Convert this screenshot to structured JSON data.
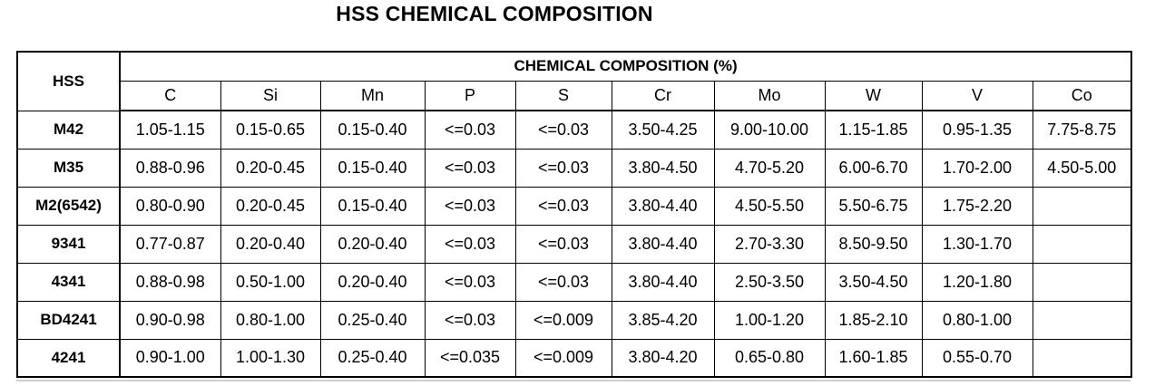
{
  "title": "HSS CHEMICAL COMPOSITION",
  "table": {
    "row_header": "HSS",
    "group_header": "CHEMICAL COMPOSITION (%)",
    "elements": [
      "C",
      "Si",
      "Mn",
      "P",
      "S",
      "Cr",
      "Mo",
      "W",
      "V",
      "Co"
    ],
    "rows": [
      {
        "grade": "M42",
        "values": [
          "1.05-1.15",
          "0.15-0.65",
          "0.15-0.40",
          "<=0.03",
          "<=0.03",
          "3.50-4.25",
          "9.00-10.00",
          "1.15-1.85",
          "0.95-1.35",
          "7.75-8.75"
        ]
      },
      {
        "grade": "M35",
        "values": [
          "0.88-0.96",
          "0.20-0.45",
          "0.15-0.40",
          "<=0.03",
          "<=0.03",
          "3.80-4.50",
          "4.70-5.20",
          "6.00-6.70",
          "1.70-2.00",
          "4.50-5.00"
        ]
      },
      {
        "grade": "M2(6542)",
        "values": [
          "0.80-0.90",
          "0.20-0.45",
          "0.15-0.40",
          "<=0.03",
          "<=0.03",
          "3.80-4.40",
          "4.50-5.50",
          "5.50-6.75",
          "1.75-2.20",
          ""
        ]
      },
      {
        "grade": "9341",
        "values": [
          "0.77-0.87",
          "0.20-0.40",
          "0.20-0.40",
          "<=0.03",
          "<=0.03",
          "3.80-4.40",
          "2.70-3.30",
          "8.50-9.50",
          "1.30-1.70",
          ""
        ]
      },
      {
        "grade": "4341",
        "values": [
          "0.88-0.98",
          "0.50-1.00",
          "0.20-0.40",
          "<=0.03",
          "<=0.03",
          "3.80-4.40",
          "2.50-3.50",
          "3.50-4.50",
          "1.20-1.80",
          ""
        ]
      },
      {
        "grade": "BD4241",
        "values": [
          "0.90-0.98",
          "0.80-1.00",
          "0.25-0.40",
          "<=0.03",
          "<=0.009",
          "3.85-4.20",
          "1.00-1.20",
          "1.85-2.10",
          "0.80-1.00",
          ""
        ]
      },
      {
        "grade": "4241",
        "values": [
          "0.90-1.00",
          "1.00-1.30",
          "0.25-0.40",
          "<=0.035",
          "<=0.009",
          "3.80-4.20",
          "0.65-0.80",
          "1.60-1.85",
          "0.55-0.70",
          ""
        ]
      }
    ]
  }
}
